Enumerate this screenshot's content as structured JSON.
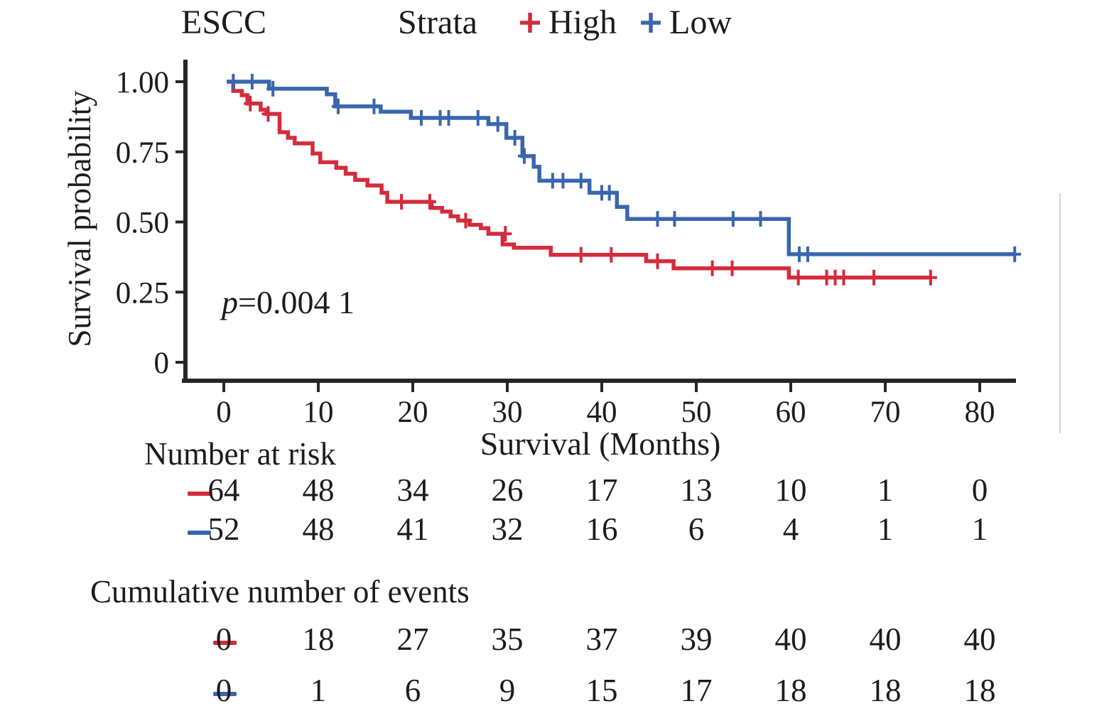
{
  "header": {
    "title": "ESCC",
    "strata_label": "Strata",
    "legend": [
      {
        "label": "High",
        "color": "#d32c3c",
        "marker": "plus-icon"
      },
      {
        "label": "Low",
        "color": "#3a66b0",
        "marker": "plus-icon"
      }
    ]
  },
  "annotation": {
    "p_var": "p",
    "p_rest": "=0.004 1"
  },
  "chart_data": {
    "type": "line",
    "subtype": "kaplan-meier-step",
    "title": "ESCC",
    "xlabel": "Survival (Months)",
    "ylabel": "Survival probability",
    "xlim": [
      0,
      84
    ],
    "ylim": [
      0,
      1
    ],
    "x_ticks": [
      0,
      10,
      20,
      30,
      40,
      50,
      60,
      70,
      80
    ],
    "y_ticks": [
      {
        "value": 1.0,
        "label": "1.00"
      },
      {
        "value": 0.75,
        "label": "0.75"
      },
      {
        "value": 0.5,
        "label": "0.50"
      },
      {
        "value": 0.25,
        "label": "0.25"
      },
      {
        "value": 0.0,
        "label": "0"
      }
    ],
    "grid": false,
    "legend_position": "top",
    "p_value_text": "p=0.004 1",
    "axis_color": "#262626",
    "series": [
      {
        "name": "High",
        "color": "#d32c3c",
        "end_month": 74.8,
        "steps": [
          [
            0.3,
            1.0
          ],
          [
            1,
            0.967
          ],
          [
            1.9,
            0.952
          ],
          [
            2.5,
            0.922
          ],
          [
            3.9,
            0.9
          ],
          [
            4.5,
            0.885
          ],
          [
            5.9,
            0.82
          ],
          [
            6.8,
            0.8
          ],
          [
            7.5,
            0.78
          ],
          [
            9.4,
            0.744
          ],
          [
            10.2,
            0.713
          ],
          [
            11.9,
            0.693
          ],
          [
            12.9,
            0.672
          ],
          [
            13.9,
            0.65
          ],
          [
            15.2,
            0.63
          ],
          [
            16.7,
            0.604
          ],
          [
            17.3,
            0.572
          ],
          [
            22,
            0.55
          ],
          [
            23.1,
            0.537
          ],
          [
            24,
            0.52
          ],
          [
            24.8,
            0.505
          ],
          [
            26,
            0.49
          ],
          [
            27.2,
            0.478
          ],
          [
            28,
            0.458
          ],
          [
            29.5,
            0.42
          ],
          [
            30.7,
            0.408
          ],
          [
            34.6,
            0.383
          ],
          [
            44.7,
            0.36
          ],
          [
            47.6,
            0.335
          ],
          [
            59.8,
            0.302
          ]
        ],
        "censor_marks": [
          [
            2.8,
            0.922
          ],
          [
            4.7,
            0.885
          ],
          [
            18.8,
            0.572
          ],
          [
            21.8,
            0.572
          ],
          [
            25.6,
            0.505
          ],
          [
            29.8,
            0.458
          ],
          [
            37.8,
            0.383
          ],
          [
            41,
            0.383
          ],
          [
            45.9,
            0.36
          ],
          [
            51.7,
            0.335
          ],
          [
            53.8,
            0.335
          ],
          [
            60.8,
            0.302
          ],
          [
            63.8,
            0.302
          ],
          [
            64.7,
            0.302
          ],
          [
            65.6,
            0.302
          ],
          [
            68.8,
            0.302
          ],
          [
            74.8,
            0.302
          ]
        ]
      },
      {
        "name": "Low",
        "color": "#3a66b0",
        "end_month": 83.7,
        "steps": [
          [
            0.3,
            1.0
          ],
          [
            4.8,
            0.975
          ],
          [
            10.9,
            0.955
          ],
          [
            11.8,
            0.912
          ],
          [
            16.6,
            0.893
          ],
          [
            19.8,
            0.871
          ],
          [
            28,
            0.849
          ],
          [
            29.9,
            0.8
          ],
          [
            31.6,
            0.735
          ],
          [
            32.8,
            0.697
          ],
          [
            33.4,
            0.647
          ],
          [
            38.7,
            0.604
          ],
          [
            41.6,
            0.554
          ],
          [
            42.7,
            0.511
          ],
          [
            59.8,
            0.385
          ]
        ],
        "censor_marks": [
          [
            1,
            1.0
          ],
          [
            3,
            1.0
          ],
          [
            5.2,
            0.975
          ],
          [
            12.1,
            0.912
          ],
          [
            15.9,
            0.912
          ],
          [
            20.9,
            0.871
          ],
          [
            22.9,
            0.871
          ],
          [
            23.8,
            0.871
          ],
          [
            26.9,
            0.871
          ],
          [
            29,
            0.849
          ],
          [
            30.8,
            0.8
          ],
          [
            31.8,
            0.735
          ],
          [
            34.8,
            0.647
          ],
          [
            35.9,
            0.647
          ],
          [
            37.8,
            0.647
          ],
          [
            40,
            0.604
          ],
          [
            40.8,
            0.604
          ],
          [
            45.9,
            0.511
          ],
          [
            47.7,
            0.511
          ],
          [
            53.9,
            0.511
          ],
          [
            56.8,
            0.511
          ],
          [
            60.9,
            0.385
          ],
          [
            61.8,
            0.385
          ],
          [
            83.7,
            0.385
          ]
        ]
      }
    ],
    "risk_table": {
      "label": "Number at risk",
      "columns": [
        0,
        10,
        20,
        30,
        40,
        50,
        60,
        70,
        80
      ],
      "rows": [
        {
          "name": "High",
          "color": "#d32c3c",
          "values": [
            64,
            48,
            34,
            26,
            17,
            13,
            10,
            1,
            0
          ]
        },
        {
          "name": "Low",
          "color": "#3a66b0",
          "values": [
            52,
            48,
            41,
            32,
            16,
            6,
            4,
            1,
            1
          ]
        }
      ]
    },
    "events_table": {
      "label": "Cumulative number of events",
      "columns": [
        0,
        10,
        20,
        30,
        40,
        50,
        60,
        70,
        80
      ],
      "rows": [
        {
          "name": "High",
          "color": "#d32c3c",
          "values": [
            0,
            18,
            27,
            35,
            37,
            39,
            40,
            40,
            40
          ]
        },
        {
          "name": "Low",
          "color": "#3a66b0",
          "values": [
            0,
            1,
            6,
            9,
            15,
            17,
            18,
            18,
            18
          ]
        }
      ]
    }
  }
}
